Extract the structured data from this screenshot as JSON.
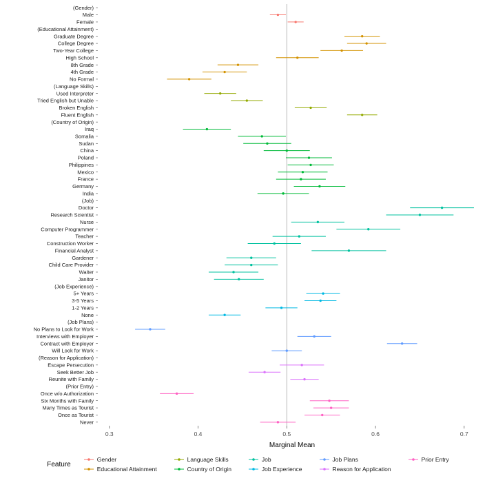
{
  "chart_data": {
    "type": "pointrange",
    "title": "",
    "xlabel": "Marginal Mean",
    "legend_title": "Feature",
    "xlim": [
      0.287,
      0.725
    ],
    "xticks": [
      0.3,
      0.4,
      0.5,
      0.6,
      0.7
    ],
    "xtick_labels": [
      "0.3",
      "0.4",
      "0.5",
      "0.6",
      "0.7"
    ],
    "reference_line": 0.5,
    "grid": false,
    "legend_position": "bottom",
    "groups": [
      {
        "name": "Gender",
        "color": "#F8766D"
      },
      {
        "name": "Educational Attainment",
        "color": "#D39200"
      },
      {
        "name": "Language Skills",
        "color": "#93AA00"
      },
      {
        "name": "Country of Origin",
        "color": "#00BA38"
      },
      {
        "name": "Job",
        "color": "#00C19F"
      },
      {
        "name": "Job Experience",
        "color": "#00B9E3"
      },
      {
        "name": "Job Plans",
        "color": "#619CFF"
      },
      {
        "name": "Reason for Application",
        "color": "#DB72FB"
      },
      {
        "name": "Prior Entry",
        "color": "#FF61C3"
      }
    ],
    "legend_columns": [
      [
        "Gender",
        "Educational Attainment"
      ],
      [
        "Language Skills",
        "Country of Origin"
      ],
      [
        "Job",
        "Job Experience"
      ],
      [
        "Job Plans",
        "Reason for Application"
      ],
      [
        "Prior Entry"
      ]
    ],
    "rows": [
      {
        "label": "(Gender)",
        "header": true
      },
      {
        "label": "Male",
        "group": "Gender",
        "mean": 0.49,
        "lower": 0.481,
        "upper": 0.499
      },
      {
        "label": "Female",
        "group": "Gender",
        "mean": 0.51,
        "lower": 0.501,
        "upper": 0.519
      },
      {
        "label": "(Educational Attainment)",
        "header": true
      },
      {
        "label": "Graduate Degree",
        "group": "Educational Attainment",
        "mean": 0.585,
        "lower": 0.565,
        "upper": 0.605
      },
      {
        "label": "College Degree",
        "group": "Educational Attainment",
        "mean": 0.59,
        "lower": 0.568,
        "upper": 0.612
      },
      {
        "label": "Two-Year College",
        "group": "Educational Attainment",
        "mean": 0.562,
        "lower": 0.538,
        "upper": 0.586
      },
      {
        "label": "High School",
        "group": "Educational Attainment",
        "mean": 0.512,
        "lower": 0.488,
        "upper": 0.536
      },
      {
        "label": "8th Grade",
        "group": "Educational Attainment",
        "mean": 0.445,
        "lower": 0.422,
        "upper": 0.468
      },
      {
        "label": "4th Grade",
        "group": "Educational Attainment",
        "mean": 0.43,
        "lower": 0.405,
        "upper": 0.455
      },
      {
        "label": "No Formal",
        "group": "Educational Attainment",
        "mean": 0.39,
        "lower": 0.365,
        "upper": 0.415
      },
      {
        "label": "(Language Skills)",
        "header": true
      },
      {
        "label": "Used Interpreter",
        "group": "Language Skills",
        "mean": 0.425,
        "lower": 0.407,
        "upper": 0.443
      },
      {
        "label": "Tried English but Unable",
        "group": "Language Skills",
        "mean": 0.455,
        "lower": 0.437,
        "upper": 0.473
      },
      {
        "label": "Broken English",
        "group": "Language Skills",
        "mean": 0.527,
        "lower": 0.509,
        "upper": 0.545
      },
      {
        "label": "Fluent English",
        "group": "Language Skills",
        "mean": 0.585,
        "lower": 0.568,
        "upper": 0.602
      },
      {
        "label": "(Country of Origin)",
        "header": true
      },
      {
        "label": "Iraq",
        "group": "Country of Origin",
        "mean": 0.41,
        "lower": 0.383,
        "upper": 0.437
      },
      {
        "label": "Somalia",
        "group": "Country of Origin",
        "mean": 0.472,
        "lower": 0.445,
        "upper": 0.499
      },
      {
        "label": "Sudan",
        "group": "Country of Origin",
        "mean": 0.478,
        "lower": 0.451,
        "upper": 0.505
      },
      {
        "label": "China",
        "group": "Country of Origin",
        "mean": 0.5,
        "lower": 0.474,
        "upper": 0.526
      },
      {
        "label": "Poland",
        "group": "Country of Origin",
        "mean": 0.525,
        "lower": 0.499,
        "upper": 0.551
      },
      {
        "label": "Philippines",
        "group": "Country of Origin",
        "mean": 0.527,
        "lower": 0.501,
        "upper": 0.553
      },
      {
        "label": "Mexico",
        "group": "Country of Origin",
        "mean": 0.518,
        "lower": 0.49,
        "upper": 0.546
      },
      {
        "label": "France",
        "group": "Country of Origin",
        "mean": 0.516,
        "lower": 0.488,
        "upper": 0.544
      },
      {
        "label": "Germany",
        "group": "Country of Origin",
        "mean": 0.537,
        "lower": 0.508,
        "upper": 0.566
      },
      {
        "label": "India",
        "group": "Country of Origin",
        "mean": 0.496,
        "lower": 0.467,
        "upper": 0.525
      },
      {
        "label": "(Job)",
        "header": true
      },
      {
        "label": "Doctor",
        "group": "Job",
        "mean": 0.675,
        "lower": 0.639,
        "upper": 0.711
      },
      {
        "label": "Research Scientist",
        "group": "Job",
        "mean": 0.65,
        "lower": 0.612,
        "upper": 0.688
      },
      {
        "label": "Nurse",
        "group": "Job",
        "mean": 0.535,
        "lower": 0.505,
        "upper": 0.565
      },
      {
        "label": "Computer Programmer",
        "group": "Job",
        "mean": 0.592,
        "lower": 0.556,
        "upper": 0.628
      },
      {
        "label": "Teacher",
        "group": "Job",
        "mean": 0.514,
        "lower": 0.484,
        "upper": 0.544
      },
      {
        "label": "Construction Worker",
        "group": "Job",
        "mean": 0.486,
        "lower": 0.456,
        "upper": 0.516
      },
      {
        "label": "Financial Analyst",
        "group": "Job",
        "mean": 0.57,
        "lower": 0.528,
        "upper": 0.612
      },
      {
        "label": "Gardener",
        "group": "Job",
        "mean": 0.46,
        "lower": 0.432,
        "upper": 0.488
      },
      {
        "label": "Child Care Provider",
        "group": "Job",
        "mean": 0.46,
        "lower": 0.43,
        "upper": 0.49
      },
      {
        "label": "Waiter",
        "group": "Job",
        "mean": 0.44,
        "lower": 0.412,
        "upper": 0.468
      },
      {
        "label": "Janitor",
        "group": "Job",
        "mean": 0.446,
        "lower": 0.418,
        "upper": 0.474
      },
      {
        "label": "(Job Experience)",
        "header": true
      },
      {
        "label": "5+ Years",
        "group": "Job Experience",
        "mean": 0.541,
        "lower": 0.522,
        "upper": 0.56
      },
      {
        "label": "3-5 Years",
        "group": "Job Experience",
        "mean": 0.538,
        "lower": 0.52,
        "upper": 0.556
      },
      {
        "label": "1-2 Years",
        "group": "Job Experience",
        "mean": 0.494,
        "lower": 0.476,
        "upper": 0.512
      },
      {
        "label": "None",
        "group": "Job Experience",
        "mean": 0.43,
        "lower": 0.412,
        "upper": 0.448
      },
      {
        "label": "(Job Plans)",
        "header": true
      },
      {
        "label": "No Plans to Look for Work",
        "group": "Job Plans",
        "mean": 0.346,
        "lower": 0.329,
        "upper": 0.363
      },
      {
        "label": "Interviews with Employer",
        "group": "Job Plans",
        "mean": 0.531,
        "lower": 0.512,
        "upper": 0.55
      },
      {
        "label": "Contract with Employer",
        "group": "Job Plans",
        "mean": 0.63,
        "lower": 0.613,
        "upper": 0.647
      },
      {
        "label": "Will Look for Work",
        "group": "Job Plans",
        "mean": 0.5,
        "lower": 0.483,
        "upper": 0.517
      },
      {
        "label": "(Reason for Application)",
        "header": true
      },
      {
        "label": "Escape Persecution",
        "group": "Reason for Application",
        "mean": 0.517,
        "lower": 0.492,
        "upper": 0.542
      },
      {
        "label": "Seek Better Job",
        "group": "Reason for Application",
        "mean": 0.475,
        "lower": 0.457,
        "upper": 0.493
      },
      {
        "label": "Reunite with Family",
        "group": "Reason for Application",
        "mean": 0.52,
        "lower": 0.504,
        "upper": 0.536
      },
      {
        "label": "(Prior Entry)",
        "header": true
      },
      {
        "label": "Once w/o Authorization",
        "group": "Prior Entry",
        "mean": 0.376,
        "lower": 0.357,
        "upper": 0.395
      },
      {
        "label": "Six Months with Family",
        "group": "Prior Entry",
        "mean": 0.548,
        "lower": 0.526,
        "upper": 0.57
      },
      {
        "label": "Many Times as Tourist",
        "group": "Prior Entry",
        "mean": 0.55,
        "lower": 0.53,
        "upper": 0.57
      },
      {
        "label": "Once as Tourist",
        "group": "Prior Entry",
        "mean": 0.54,
        "lower": 0.52,
        "upper": 0.56
      },
      {
        "label": "Never",
        "group": "Prior Entry",
        "mean": 0.49,
        "lower": 0.47,
        "upper": 0.51
      }
    ]
  }
}
